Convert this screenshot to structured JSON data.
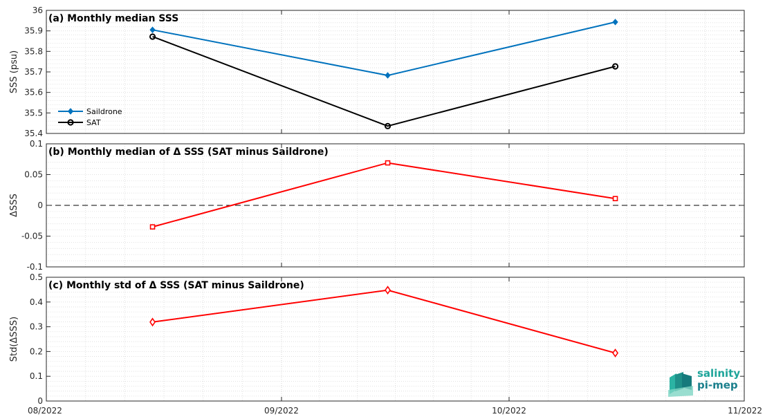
{
  "chart_data": [
    {
      "type": "line",
      "title": "(a) Monthly median SSS",
      "xlabel": "",
      "ylabel": "SSS (psu)",
      "ylim": [
        35.4,
        36
      ],
      "yticks": [
        "35.4",
        "35.5",
        "35.6",
        "35.7",
        "35.8",
        "35.9",
        "36"
      ],
      "grid": true,
      "legend": "bottom-left",
      "series": [
        {
          "name": "Saildrone",
          "color": "#0072bd",
          "marker": "diamond-filled",
          "points": [
            {
              "x": "2022-08-15",
              "y": 35.905
            },
            {
              "x": "2022-09-15",
              "y": 35.683
            },
            {
              "x": "2022-10-15",
              "y": 35.943
            }
          ]
        },
        {
          "name": "SAT",
          "color": "#000000",
          "marker": "circle-open",
          "points": [
            {
              "x": "2022-08-15",
              "y": 35.872
            },
            {
              "x": "2022-09-15",
              "y": 35.436
            },
            {
              "x": "2022-10-15",
              "y": 35.727
            }
          ]
        }
      ]
    },
    {
      "type": "line",
      "title": "(b) Monthly median of Δ SSS (SAT minus Saildrone)",
      "xlabel": "",
      "ylabel": "ΔSSS",
      "ylim": [
        -0.1,
        0.1
      ],
      "yticks": [
        "-0.1",
        "-0.05",
        "0",
        "0.05",
        "0.1"
      ],
      "grid": true,
      "zero_line": "dashed",
      "series": [
        {
          "color": "#ff0000",
          "marker": "square-open",
          "points": [
            {
              "x": "2022-08-15",
              "y": -0.035
            },
            {
              "x": "2022-09-15",
              "y": 0.069
            },
            {
              "x": "2022-10-15",
              "y": 0.011
            }
          ]
        }
      ]
    },
    {
      "type": "line",
      "title": "(c) Monthly std of Δ SSS (SAT minus Saildrone)",
      "xlabel": "",
      "ylabel": "Std(ΔSSS)",
      "ylim": [
        0,
        0.5
      ],
      "yticks": [
        "0",
        "0.1",
        "0.2",
        "0.3",
        "0.4",
        "0.5"
      ],
      "grid": true,
      "series": [
        {
          "color": "#ff0000",
          "marker": "diamond-open",
          "points": [
            {
              "x": "2022-08-15",
              "y": 0.319
            },
            {
              "x": "2022-09-15",
              "y": 0.448
            },
            {
              "x": "2022-10-15",
              "y": 0.194
            }
          ]
        }
      ]
    }
  ],
  "x_axis": {
    "range": [
      "2022-08-01",
      "2022-11-01"
    ],
    "ticks": [
      {
        "date": "2022-08-01",
        "label": "08/2022"
      },
      {
        "date": "2022-09-01",
        "label": "09/2022"
      },
      {
        "date": "2022-10-01",
        "label": "10/2022"
      },
      {
        "date": "2022-11-01",
        "label": "11/2022"
      }
    ]
  },
  "logo": {
    "line1": "salinity",
    "line2": "pi-mep"
  },
  "colors": {
    "grid_minor": "#d9d9d9",
    "axis": "#262626",
    "logo_teal": "#1ea59a"
  }
}
